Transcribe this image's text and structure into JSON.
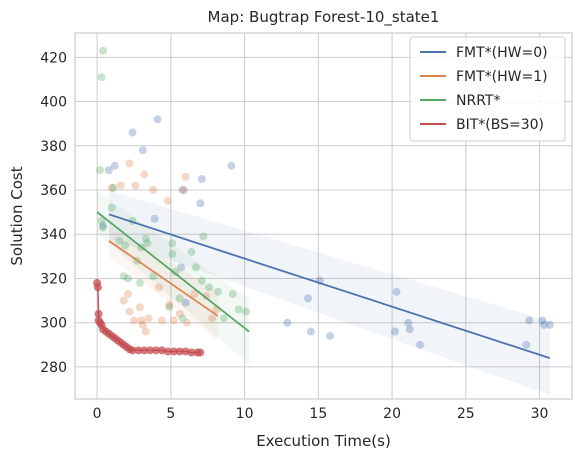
{
  "chart_data": {
    "type": "scatter",
    "title": "Map: Bugtrap Forest-10_state1",
    "xlabel": "Execution Time(s)",
    "ylabel": "Solution Cost",
    "xlim": [
      -1.5,
      32.2
    ],
    "ylim": [
      265.5,
      431
    ],
    "xticks": [
      0,
      5,
      10,
      15,
      20,
      25,
      30
    ],
    "yticks": [
      280,
      300,
      320,
      340,
      360,
      380,
      400,
      420
    ],
    "grid": true,
    "legend_position": "top-right",
    "series": [
      {
        "name": "FMT*(HW=0)",
        "color": "#4c72b0",
        "points": [
          [
            0.4,
            344
          ],
          [
            0.8,
            369
          ],
          [
            1.2,
            371
          ],
          [
            2.4,
            386
          ],
          [
            3.1,
            378
          ],
          [
            3.9,
            347
          ],
          [
            4.1,
            392
          ],
          [
            5.8,
            360
          ],
          [
            7.0,
            354
          ],
          [
            7.1,
            365
          ],
          [
            9.1,
            371
          ],
          [
            6.0,
            309
          ],
          [
            5.7,
            325
          ],
          [
            12.9,
            300
          ],
          [
            14.3,
            311
          ],
          [
            14.5,
            296
          ],
          [
            15.1,
            319
          ],
          [
            15.8,
            294
          ],
          [
            20.2,
            296
          ],
          [
            20.3,
            314
          ],
          [
            21.1,
            300
          ],
          [
            21.2,
            297
          ],
          [
            21.9,
            290
          ],
          [
            29.1,
            290
          ],
          [
            29.3,
            301
          ],
          [
            30.2,
            301
          ],
          [
            30.3,
            299
          ],
          [
            30.7,
            299
          ]
        ],
        "fit": {
          "x": [
            0.8,
            30.7
          ],
          "y": [
            349,
            284
          ]
        }
      },
      {
        "name": "FMT*(HW=1)",
        "color": "#dd8452",
        "points": [
          [
            1.0,
            361
          ],
          [
            1.6,
            362
          ],
          [
            2.2,
            372
          ],
          [
            2.6,
            362
          ],
          [
            3.2,
            367
          ],
          [
            3.8,
            360
          ],
          [
            6.0,
            366
          ],
          [
            4.8,
            355
          ],
          [
            5.9,
            360
          ],
          [
            1.8,
            310
          ],
          [
            2.1,
            313
          ],
          [
            2.5,
            301
          ],
          [
            2.9,
            307
          ],
          [
            3.0,
            301
          ],
          [
            3.1,
            299
          ],
          [
            3.5,
            302
          ],
          [
            4.2,
            316
          ],
          [
            4.4,
            301
          ],
          [
            4.9,
            308
          ],
          [
            5.6,
            304
          ],
          [
            6.1,
            300
          ],
          [
            6.6,
            313
          ],
          [
            7.4,
            312
          ],
          [
            7.8,
            302
          ],
          [
            8.1,
            306
          ],
          [
            2.2,
            305
          ],
          [
            3.3,
            296
          ],
          [
            5.2,
            301
          ]
        ],
        "fit": {
          "x": [
            0.8,
            8.2
          ],
          "y": [
            337,
            303
          ]
        }
      },
      {
        "name": "NRRT*",
        "color": "#55a868",
        "points": [
          [
            0.4,
            423
          ],
          [
            0.3,
            411
          ],
          [
            0.2,
            369
          ],
          [
            0.3,
            346
          ],
          [
            0.4,
            343
          ],
          [
            1.0,
            352
          ],
          [
            1.1,
            361
          ],
          [
            1.5,
            337
          ],
          [
            1.8,
            321
          ],
          [
            2.4,
            346
          ],
          [
            3.0,
            334
          ],
          [
            3.3,
            338
          ],
          [
            3.4,
            336
          ],
          [
            2.7,
            328
          ],
          [
            2.9,
            318
          ],
          [
            3.8,
            321
          ],
          [
            4.9,
            307
          ],
          [
            5.1,
            336
          ],
          [
            5.3,
            323
          ],
          [
            5.6,
            311
          ],
          [
            5.8,
            302
          ],
          [
            6.4,
            332
          ],
          [
            6.7,
            325
          ],
          [
            7.1,
            319
          ],
          [
            7.2,
            339
          ],
          [
            7.6,
            316
          ],
          [
            8.2,
            314
          ],
          [
            8.6,
            302
          ],
          [
            9.2,
            313
          ],
          [
            9.6,
            306
          ],
          [
            10.1,
            305
          ],
          [
            5.1,
            331
          ],
          [
            1.9,
            335
          ],
          [
            2.1,
            320
          ]
        ],
        "fit": {
          "x": [
            0,
            10.3
          ],
          "y": [
            350,
            296
          ]
        }
      },
      {
        "name": "BIT*(BS=30)",
        "color": "#c44e52",
        "points": [
          [
            0.0,
            318
          ],
          [
            0.05,
            316
          ],
          [
            0.1,
            304
          ],
          [
            0.1,
            301
          ],
          [
            0.2,
            300
          ],
          [
            0.3,
            299
          ],
          [
            0.4,
            297
          ],
          [
            0.6,
            296
          ],
          [
            0.8,
            295
          ],
          [
            1.0,
            294
          ],
          [
            1.2,
            293
          ],
          [
            1.4,
            292
          ],
          [
            1.6,
            291
          ],
          [
            1.8,
            290
          ],
          [
            2.0,
            289
          ],
          [
            2.2,
            288
          ],
          [
            2.4,
            287.5
          ],
          [
            2.8,
            287.5
          ],
          [
            3.2,
            287.5
          ],
          [
            3.6,
            287.5
          ],
          [
            4.0,
            287.5
          ],
          [
            4.4,
            287.5
          ],
          [
            4.8,
            287
          ],
          [
            5.2,
            287
          ],
          [
            5.6,
            287
          ],
          [
            6.0,
            287
          ],
          [
            6.4,
            286.5
          ],
          [
            6.8,
            286.5
          ],
          [
            7.0,
            286.5
          ]
        ]
      }
    ]
  }
}
